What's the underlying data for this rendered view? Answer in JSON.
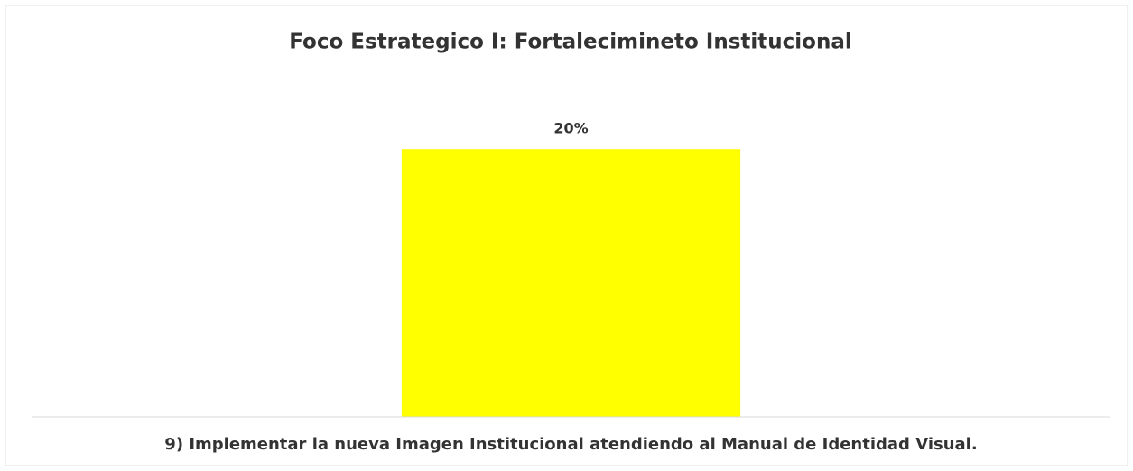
{
  "chart_data": {
    "type": "bar",
    "title": "Foco Estrategico I: Fortalecimineto Institucional",
    "categories": [
      "9) Implementar la nueva Imagen Institucional atendiendo al Manual de Identidad Visual."
    ],
    "values": [
      20
    ],
    "value_labels": [
      "20%"
    ],
    "color": "#ffff00",
    "ylim": [
      0,
      25
    ]
  }
}
